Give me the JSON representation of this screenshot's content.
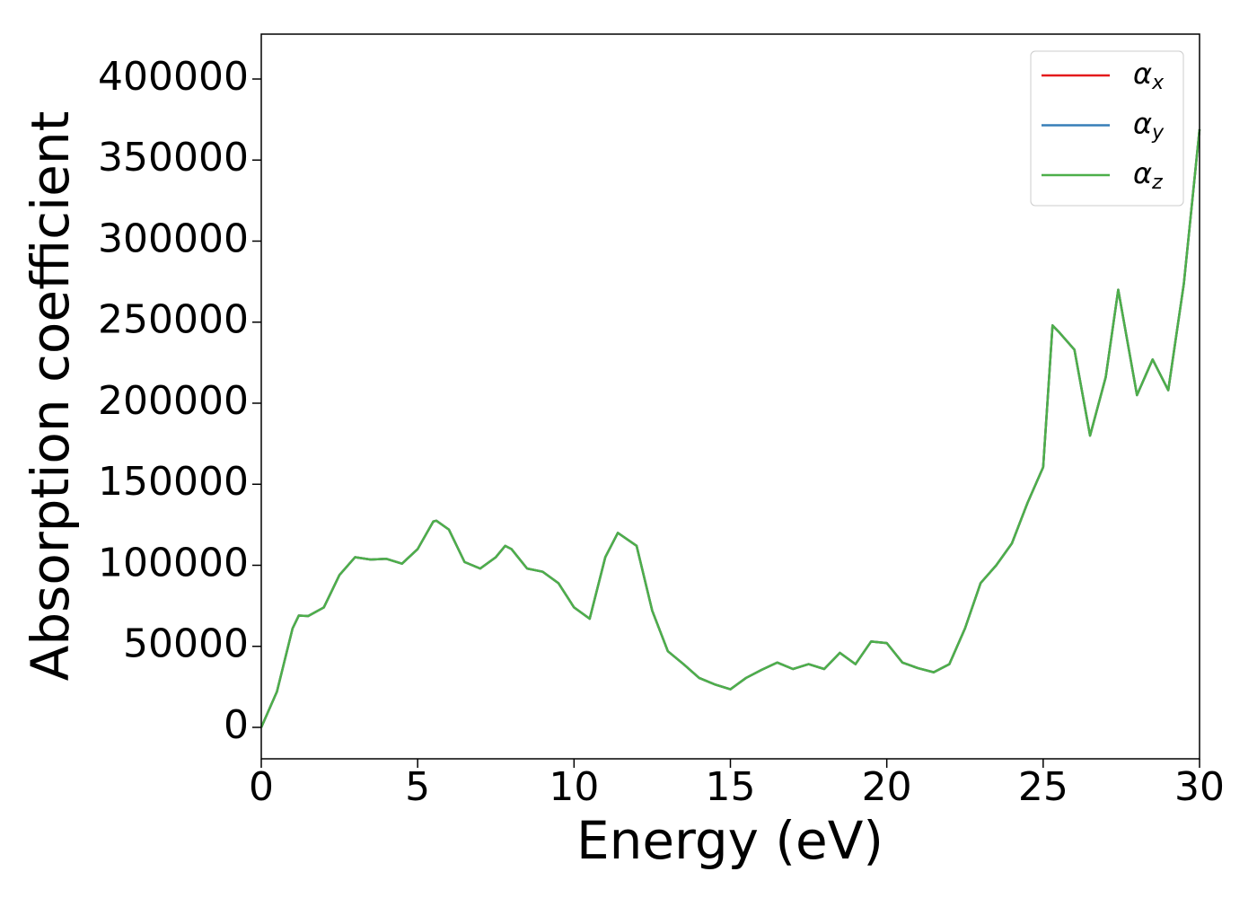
{
  "chart_data": {
    "type": "line",
    "x_label": "Energy (eV)",
    "y_label": "Absorption coefficient",
    "x": [
      0,
      0.5,
      1.0,
      1.2,
      1.5,
      2.0,
      2.5,
      3.0,
      3.5,
      4.0,
      4.5,
      5.0,
      5.5,
      5.6,
      6.0,
      6.5,
      7.0,
      7.5,
      7.8,
      8.0,
      8.5,
      9.0,
      9.5,
      10.0,
      10.5,
      11.0,
      11.4,
      12.0,
      12.5,
      13.0,
      13.5,
      14.0,
      14.5,
      15.0,
      15.5,
      16.0,
      16.5,
      17.0,
      17.5,
      18.0,
      18.5,
      19.0,
      19.5,
      20.0,
      20.5,
      21.0,
      21.5,
      22.0,
      22.5,
      23.0,
      23.5,
      24.0,
      24.5,
      25.0,
      25.3,
      25.5,
      26.0,
      26.5,
      27.0,
      27.4,
      28.0,
      28.5,
      29.0,
      29.5,
      30.0
    ],
    "series": [
      {
        "name": "αx",
        "color": "#e41a1c",
        "values": [
          0,
          22000,
          61000,
          69000,
          68700,
          74000,
          94000,
          105000,
          103500,
          104000,
          101000,
          110000,
          127000,
          127500,
          122000,
          102000,
          98000,
          105000,
          112000,
          110000,
          98000,
          96000,
          89000,
          74000,
          67000,
          105000,
          120000,
          112000,
          72000,
          47000,
          39000,
          30500,
          26500,
          23500,
          30500,
          35500,
          40000,
          36000,
          39000,
          36000,
          46000,
          39000,
          53000,
          52000,
          40000,
          36500,
          34000,
          39000,
          61000,
          89000,
          100000,
          113500,
          138500,
          160500,
          248000,
          244000,
          233000,
          180000,
          216000,
          270000,
          205000,
          227000,
          208000,
          274000,
          369000
        ]
      },
      {
        "name": "αy",
        "color": "#377eb8",
        "values": [
          0,
          22000,
          61000,
          69000,
          68700,
          74000,
          94000,
          105000,
          103500,
          104000,
          101000,
          110000,
          127000,
          127500,
          122000,
          102000,
          98000,
          105000,
          112000,
          110000,
          98000,
          96000,
          89000,
          74000,
          67000,
          105000,
          120000,
          112000,
          72000,
          47000,
          39000,
          30500,
          26500,
          23500,
          30500,
          35500,
          40000,
          36000,
          39000,
          36000,
          46000,
          39000,
          53000,
          52000,
          40000,
          36500,
          34000,
          39000,
          61000,
          89000,
          100000,
          113500,
          138500,
          160500,
          248000,
          244000,
          233000,
          180000,
          216000,
          270000,
          205000,
          227000,
          208000,
          274000,
          369000
        ]
      },
      {
        "name": "αz",
        "color": "#4daf4a",
        "values": [
          0,
          22000,
          61000,
          69000,
          68700,
          74000,
          94000,
          105000,
          103500,
          104000,
          101000,
          110000,
          127000,
          127500,
          122000,
          102000,
          98000,
          105000,
          112000,
          110000,
          98000,
          96000,
          89000,
          74000,
          67000,
          105000,
          120000,
          112000,
          72000,
          47000,
          39000,
          30500,
          26500,
          23500,
          30500,
          35500,
          40000,
          36000,
          39000,
          36000,
          46000,
          39000,
          53000,
          52000,
          40000,
          36500,
          34000,
          39000,
          61000,
          89000,
          100000,
          113500,
          138500,
          160500,
          248000,
          244000,
          233000,
          180000,
          216000,
          270000,
          205000,
          227000,
          208000,
          274000,
          369000
        ]
      }
    ],
    "xlim": [
      0,
      30
    ],
    "xticks": [
      0,
      5,
      10,
      15,
      20,
      25,
      30
    ],
    "ylim": [
      -19400,
      427700
    ],
    "yticks": [
      0,
      50000,
      100000,
      150000,
      200000,
      250000,
      300000,
      350000,
      400000
    ],
    "grid": false,
    "legend": "upper right"
  }
}
